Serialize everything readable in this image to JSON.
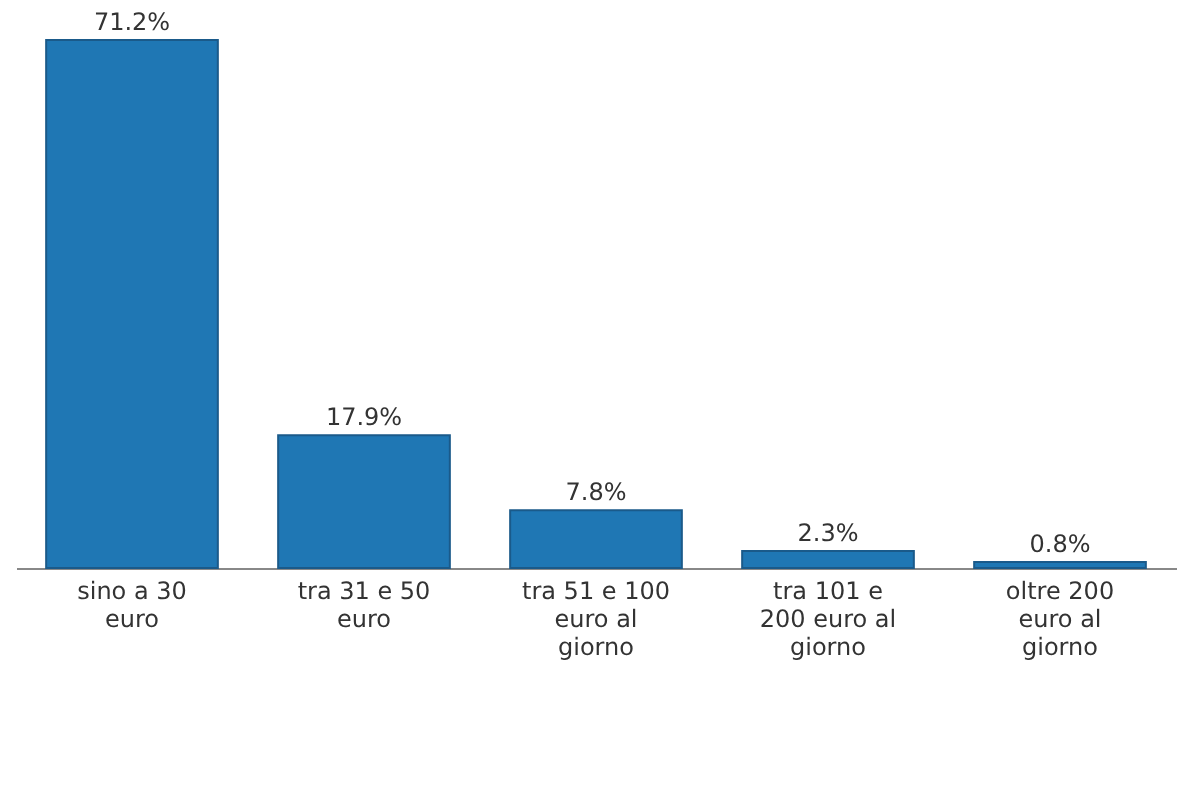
{
  "chart_data": {
    "type": "bar",
    "categories": [
      "sino a 30 euro",
      "tra 31 e 50 euro",
      "tra 51 e 100 euro al giorno",
      "tra 101 e 200 euro al giorno",
      "oltre 200 euro al giorno"
    ],
    "values": [
      71.2,
      17.9,
      7.8,
      2.3,
      0.8
    ],
    "value_labels": [
      "71.2%",
      "17.9%",
      "7.8%",
      "2.3%",
      "0.8%"
    ],
    "color": "#1f77b4"
  }
}
